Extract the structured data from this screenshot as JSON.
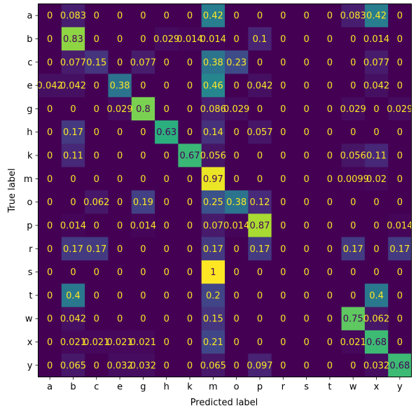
{
  "chart_data": {
    "type": "heatmap",
    "title": "",
    "xlabel": "Predicted label",
    "ylabel": "True label",
    "x_categories": [
      "a",
      "b",
      "c",
      "e",
      "g",
      "h",
      "k",
      "m",
      "o",
      "p",
      "r",
      "s",
      "t",
      "w",
      "x",
      "y"
    ],
    "y_categories": [
      "a",
      "b",
      "c",
      "e",
      "g",
      "h",
      "k",
      "m",
      "o",
      "p",
      "r",
      "s",
      "t",
      "w",
      "x",
      "y"
    ],
    "vmin": 0,
    "vmax": 1,
    "colormap": "viridis",
    "colorbar": false,
    "grid": false,
    "values": [
      [
        "0",
        "0.083",
        "0",
        "0",
        "0",
        "0",
        "0",
        "0.42",
        "0",
        "0",
        "0",
        "0",
        "0",
        "0.083",
        "0.42",
        "0"
      ],
      [
        "0",
        "0.83",
        "0",
        "0",
        "0",
        "0.029",
        "0.014",
        "0.014",
        "0",
        "0.1",
        "0",
        "0",
        "0",
        "0",
        "0.014",
        "0"
      ],
      [
        "0",
        "0.077",
        "0.15",
        "0",
        "0.077",
        "0",
        "0",
        "0.38",
        "0.23",
        "0",
        "0",
        "0",
        "0",
        "0",
        "0.077",
        "0"
      ],
      [
        "0.042",
        "0.042",
        "0",
        "0.38",
        "0",
        "0",
        "0",
        "0.46",
        "0",
        "0.042",
        "0",
        "0",
        "0",
        "0",
        "0.042",
        "0"
      ],
      [
        "0",
        "0",
        "0",
        "0.029",
        "0.8",
        "0",
        "0",
        "0.086",
        "0.029",
        "0",
        "0",
        "0",
        "0",
        "0.029",
        "0",
        "0.029"
      ],
      [
        "0",
        "0.17",
        "0",
        "0",
        "0",
        "0.63",
        "0",
        "0.14",
        "0",
        "0.057",
        "0",
        "0",
        "0",
        "0",
        "0",
        "0"
      ],
      [
        "0",
        "0.11",
        "0",
        "0",
        "0",
        "0",
        "0.67",
        "0.056",
        "0",
        "0",
        "0",
        "0",
        "0",
        "0.056",
        "0.11",
        "0"
      ],
      [
        "0",
        "0",
        "0",
        "0",
        "0",
        "0",
        "0",
        "0.97",
        "0",
        "0",
        "0",
        "0",
        "0",
        "0.0099",
        "0.02",
        "0"
      ],
      [
        "0",
        "0",
        "0.062",
        "0",
        "0.19",
        "0",
        "0",
        "0.25",
        "0.38",
        "0.12",
        "0",
        "0",
        "0",
        "0",
        "0",
        "0"
      ],
      [
        "0",
        "0.014",
        "0",
        "0",
        "0.014",
        "0",
        "0",
        "0.07",
        "0.014",
        "0.87",
        "0",
        "0",
        "0",
        "0",
        "0",
        "0.014"
      ],
      [
        "0",
        "0.17",
        "0.17",
        "0",
        "0",
        "0",
        "0",
        "0.17",
        "0",
        "0.17",
        "0",
        "0",
        "0",
        "0.17",
        "0",
        "0.17"
      ],
      [
        "0",
        "0",
        "0",
        "0",
        "0",
        "0",
        "0",
        "1",
        "0",
        "0",
        "0",
        "0",
        "0",
        "0",
        "0",
        "0"
      ],
      [
        "0",
        "0.4",
        "0",
        "0",
        "0",
        "0",
        "0",
        "0.2",
        "0",
        "0",
        "0",
        "0",
        "0",
        "0",
        "0.4",
        "0"
      ],
      [
        "0",
        "0.042",
        "0",
        "0",
        "0",
        "0",
        "0",
        "0.15",
        "0",
        "0",
        "0",
        "0",
        "0",
        "0.75",
        "0.062",
        "0"
      ],
      [
        "0",
        "0.021",
        "0.021",
        "0.021",
        "0.021",
        "0",
        "0",
        "0.21",
        "0",
        "0",
        "0",
        "0",
        "0",
        "0.021",
        "0.68",
        "0"
      ],
      [
        "0",
        "0.065",
        "0",
        "0.032",
        "0.032",
        "0",
        "0",
        "0.065",
        "0",
        "0.097",
        "0",
        "0",
        "0",
        "0",
        "0.032",
        "0.68"
      ]
    ]
  }
}
